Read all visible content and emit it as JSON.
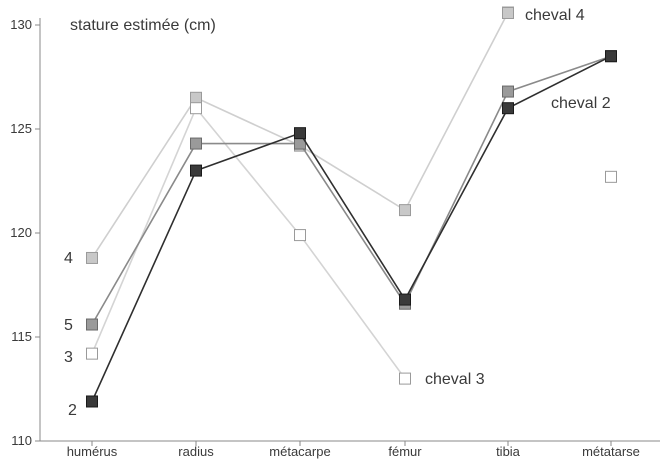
{
  "chart_data": {
    "type": "line",
    "ylabel": "stature estimée (cm)",
    "categories": [
      "humérus",
      "radius",
      "métacarpe",
      "fémur",
      "tibia",
      "métatarse"
    ],
    "ylim": [
      110,
      130
    ],
    "yticks": [
      110,
      115,
      120,
      125,
      130
    ],
    "grid": false,
    "series": [
      {
        "name": "cheval 2",
        "label_left": "2",
        "label_right": "cheval 2",
        "values": [
          111.9,
          123.0,
          124.8,
          116.8,
          126.0,
          128.5
        ],
        "color": "#2f2f2f",
        "marker_fill": "#3a3a3a",
        "marker_stroke": "#1a1a1a"
      },
      {
        "name": "cheval 5",
        "label_left": "5",
        "label_right": "",
        "values": [
          115.6,
          124.3,
          124.3,
          116.6,
          126.8,
          128.5
        ],
        "color": "#8a8a8a",
        "marker_fill": "#9a9a9a",
        "marker_stroke": "#6a6a6a"
      },
      {
        "name": "cheval 3",
        "label_left": "3",
        "label_right": "cheval 3",
        "values": [
          114.2,
          126.0,
          119.9,
          113.0,
          null,
          122.7
        ],
        "color": "#d4d4d4",
        "marker_fill": "#ffffff",
        "marker_stroke": "#9a9a9a"
      },
      {
        "name": "cheval 4",
        "label_left": "4",
        "label_right": "cheval 4",
        "values": [
          118.8,
          126.5,
          124.2,
          121.1,
          130.6,
          null
        ],
        "color": "#cfcfcf",
        "marker_fill": "#c8c8c8",
        "marker_stroke": "#9a9a9a"
      }
    ]
  }
}
